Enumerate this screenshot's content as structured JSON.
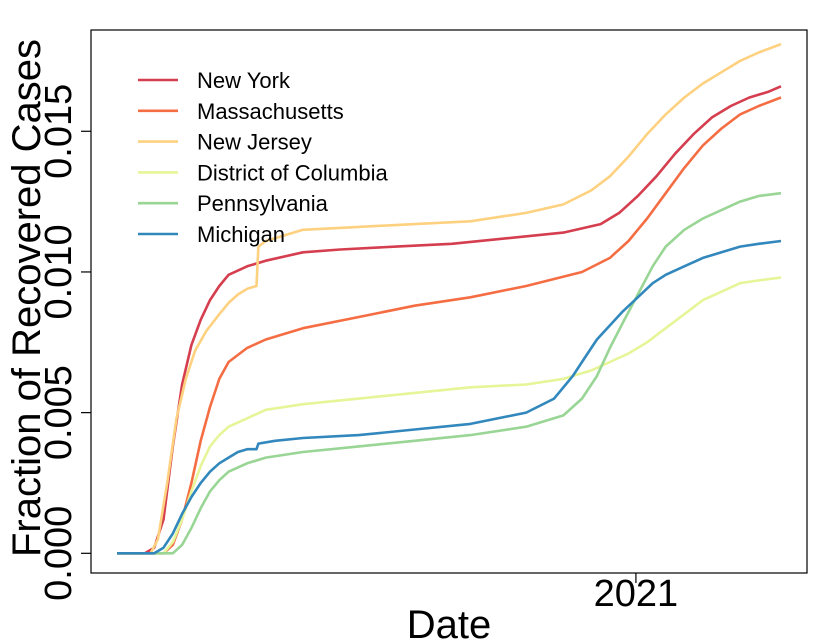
{
  "chart_data": {
    "type": "line",
    "xlabel": "Date",
    "ylabel": "Fraction of Recovered Cases",
    "x_axis": {
      "unit": "days since first observation",
      "range": [
        0,
        365
      ],
      "ticks": [
        {
          "value": 279,
          "label": "2021"
        }
      ]
    },
    "ylim": [
      -0.0007,
      0.0186
    ],
    "y_ticks": [
      {
        "value": 0.0,
        "label": "0.000"
      },
      {
        "value": 0.005,
        "label": "0.005"
      },
      {
        "value": 0.01,
        "label": "0.010"
      },
      {
        "value": 0.015,
        "label": "0.015"
      }
    ],
    "grid": false,
    "legend_position": "top-left",
    "series": [
      {
        "name": "New York",
        "color": "#d53e4f",
        "points": [
          [
            0,
            0
          ],
          [
            15,
            0
          ],
          [
            20,
            0.0002
          ],
          [
            25,
            0.0012
          ],
          [
            30,
            0.0038
          ],
          [
            35,
            0.006
          ],
          [
            40,
            0.0074
          ],
          [
            45,
            0.0083
          ],
          [
            50,
            0.009
          ],
          [
            55,
            0.0095
          ],
          [
            60,
            0.0099
          ],
          [
            70,
            0.0102
          ],
          [
            80,
            0.0104
          ],
          [
            100,
            0.0107
          ],
          [
            120,
            0.0108
          ],
          [
            150,
            0.0109
          ],
          [
            180,
            0.011
          ],
          [
            210,
            0.0112
          ],
          [
            240,
            0.0114
          ],
          [
            260,
            0.0117
          ],
          [
            270,
            0.0121
          ],
          [
            280,
            0.0127
          ],
          [
            290,
            0.0134
          ],
          [
            300,
            0.0142
          ],
          [
            310,
            0.0149
          ],
          [
            320,
            0.0155
          ],
          [
            330,
            0.0159
          ],
          [
            340,
            0.0162
          ],
          [
            350,
            0.0164
          ],
          [
            357,
            0.0166
          ]
        ]
      },
      {
        "name": "Massachusetts",
        "color": "#f46d43",
        "points": [
          [
            0,
            0
          ],
          [
            25,
            0
          ],
          [
            30,
            0.0003
          ],
          [
            35,
            0.0012
          ],
          [
            40,
            0.0025
          ],
          [
            45,
            0.004
          ],
          [
            50,
            0.0052
          ],
          [
            55,
            0.0062
          ],
          [
            60,
            0.0068
          ],
          [
            70,
            0.0073
          ],
          [
            80,
            0.0076
          ],
          [
            100,
            0.008
          ],
          [
            130,
            0.0084
          ],
          [
            160,
            0.0088
          ],
          [
            190,
            0.0091
          ],
          [
            220,
            0.0095
          ],
          [
            250,
            0.01
          ],
          [
            265,
            0.0105
          ],
          [
            275,
            0.0111
          ],
          [
            285,
            0.0119
          ],
          [
            295,
            0.0128
          ],
          [
            305,
            0.0137
          ],
          [
            315,
            0.0145
          ],
          [
            325,
            0.0151
          ],
          [
            335,
            0.0156
          ],
          [
            345,
            0.0159
          ],
          [
            357,
            0.0162
          ]
        ]
      },
      {
        "name": "New Jersey",
        "color": "#fdd17f",
        "points": [
          [
            0,
            0
          ],
          [
            18,
            0
          ],
          [
            22,
            0.0005
          ],
          [
            27,
            0.0025
          ],
          [
            32,
            0.0048
          ],
          [
            37,
            0.0062
          ],
          [
            42,
            0.0072
          ],
          [
            48,
            0.0079
          ],
          [
            55,
            0.0085
          ],
          [
            60,
            0.0089
          ],
          [
            65,
            0.0092
          ],
          [
            70,
            0.0094
          ],
          [
            75,
            0.0095
          ],
          [
            76,
            0.0109
          ],
          [
            80,
            0.0111
          ],
          [
            90,
            0.0113
          ],
          [
            100,
            0.0115
          ],
          [
            130,
            0.0116
          ],
          [
            160,
            0.0117
          ],
          [
            190,
            0.0118
          ],
          [
            220,
            0.0121
          ],
          [
            240,
            0.0124
          ],
          [
            255,
            0.0129
          ],
          [
            265,
            0.0134
          ],
          [
            275,
            0.0141
          ],
          [
            285,
            0.0149
          ],
          [
            295,
            0.0156
          ],
          [
            305,
            0.0162
          ],
          [
            315,
            0.0167
          ],
          [
            325,
            0.0171
          ],
          [
            335,
            0.0175
          ],
          [
            345,
            0.0178
          ],
          [
            357,
            0.0181
          ]
        ]
      },
      {
        "name": "District of Columbia",
        "color": "#e6f598",
        "points": [
          [
            0,
            0
          ],
          [
            25,
            0
          ],
          [
            30,
            0.0004
          ],
          [
            35,
            0.0012
          ],
          [
            40,
            0.0022
          ],
          [
            45,
            0.0031
          ],
          [
            50,
            0.0038
          ],
          [
            55,
            0.0042
          ],
          [
            60,
            0.0045
          ],
          [
            70,
            0.0048
          ],
          [
            80,
            0.0051
          ],
          [
            100,
            0.0053
          ],
          [
            130,
            0.0055
          ],
          [
            160,
            0.0057
          ],
          [
            190,
            0.0059
          ],
          [
            220,
            0.006
          ],
          [
            240,
            0.0062
          ],
          [
            255,
            0.0065
          ],
          [
            265,
            0.0068
          ],
          [
            275,
            0.0071
          ],
          [
            285,
            0.0075
          ],
          [
            295,
            0.008
          ],
          [
            305,
            0.0085
          ],
          [
            315,
            0.009
          ],
          [
            325,
            0.0093
          ],
          [
            335,
            0.0096
          ],
          [
            345,
            0.0097
          ],
          [
            357,
            0.0098
          ]
        ]
      },
      {
        "name": "Pennsylvania",
        "color": "#99d594",
        "points": [
          [
            0,
            0
          ],
          [
            30,
            0
          ],
          [
            35,
            0.0003
          ],
          [
            40,
            0.0009
          ],
          [
            45,
            0.0016
          ],
          [
            50,
            0.0022
          ],
          [
            55,
            0.0026
          ],
          [
            60,
            0.0029
          ],
          [
            70,
            0.0032
          ],
          [
            80,
            0.0034
          ],
          [
            100,
            0.0036
          ],
          [
            130,
            0.0038
          ],
          [
            160,
            0.004
          ],
          [
            190,
            0.0042
          ],
          [
            220,
            0.0045
          ],
          [
            240,
            0.0049
          ],
          [
            250,
            0.0055
          ],
          [
            258,
            0.0063
          ],
          [
            265,
            0.0073
          ],
          [
            272,
            0.0082
          ],
          [
            280,
            0.0092
          ],
          [
            288,
            0.0102
          ],
          [
            295,
            0.0109
          ],
          [
            305,
            0.0115
          ],
          [
            315,
            0.0119
          ],
          [
            325,
            0.0122
          ],
          [
            335,
            0.0125
          ],
          [
            345,
            0.0127
          ],
          [
            357,
            0.0128
          ]
        ]
      },
      {
        "name": "Michigan",
        "color": "#3288bd",
        "points": [
          [
            0,
            0
          ],
          [
            20,
            0
          ],
          [
            25,
            0.0002
          ],
          [
            30,
            0.0007
          ],
          [
            35,
            0.0014
          ],
          [
            40,
            0.002
          ],
          [
            45,
            0.0025
          ],
          [
            50,
            0.0029
          ],
          [
            55,
            0.0032
          ],
          [
            60,
            0.0034
          ],
          [
            65,
            0.0036
          ],
          [
            70,
            0.0037
          ],
          [
            75,
            0.0037
          ],
          [
            76,
            0.0039
          ],
          [
            85,
            0.004
          ],
          [
            100,
            0.0041
          ],
          [
            130,
            0.0042
          ],
          [
            160,
            0.0044
          ],
          [
            190,
            0.0046
          ],
          [
            220,
            0.005
          ],
          [
            235,
            0.0055
          ],
          [
            245,
            0.0063
          ],
          [
            252,
            0.007
          ],
          [
            258,
            0.0076
          ],
          [
            265,
            0.0081
          ],
          [
            272,
            0.0086
          ],
          [
            280,
            0.0091
          ],
          [
            288,
            0.0096
          ],
          [
            295,
            0.0099
          ],
          [
            305,
            0.0102
          ],
          [
            315,
            0.0105
          ],
          [
            325,
            0.0107
          ],
          [
            335,
            0.0109
          ],
          [
            345,
            0.011
          ],
          [
            357,
            0.0111
          ]
        ]
      }
    ]
  }
}
